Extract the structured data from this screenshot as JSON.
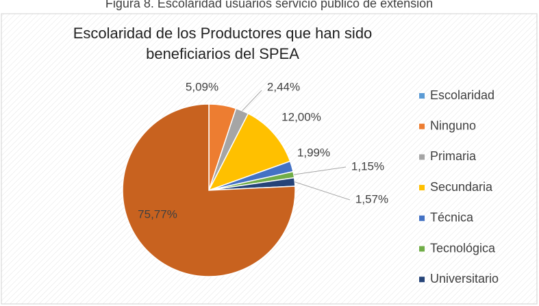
{
  "figure_caption": "Figura 8. Escolaridad usuarios servicio público de extensión",
  "chart_data": {
    "type": "pie",
    "title": "Escolaridad de los Productores que han sido beneficiarios del SPEA",
    "categories": [
      "Escolaridad",
      "Ninguno",
      "Primaria",
      "Secundaria",
      "Técnica",
      "Tecnológica",
      "Universitario",
      null
    ],
    "values": [
      0,
      5.09,
      2.44,
      12.0,
      1.99,
      1.15,
      1.57,
      75.77
    ],
    "value_labels": [
      null,
      "5,09%",
      "2,44%",
      "12,00%",
      "1,99%",
      "1,15%",
      "1,57%",
      "75,77%"
    ],
    "colors": [
      "#5b9bd5",
      "#ed7d31",
      "#a5a5a5",
      "#ffc000",
      "#4472c4",
      "#70ad47",
      "#264478",
      "#c8621f"
    ],
    "legend": "right"
  }
}
